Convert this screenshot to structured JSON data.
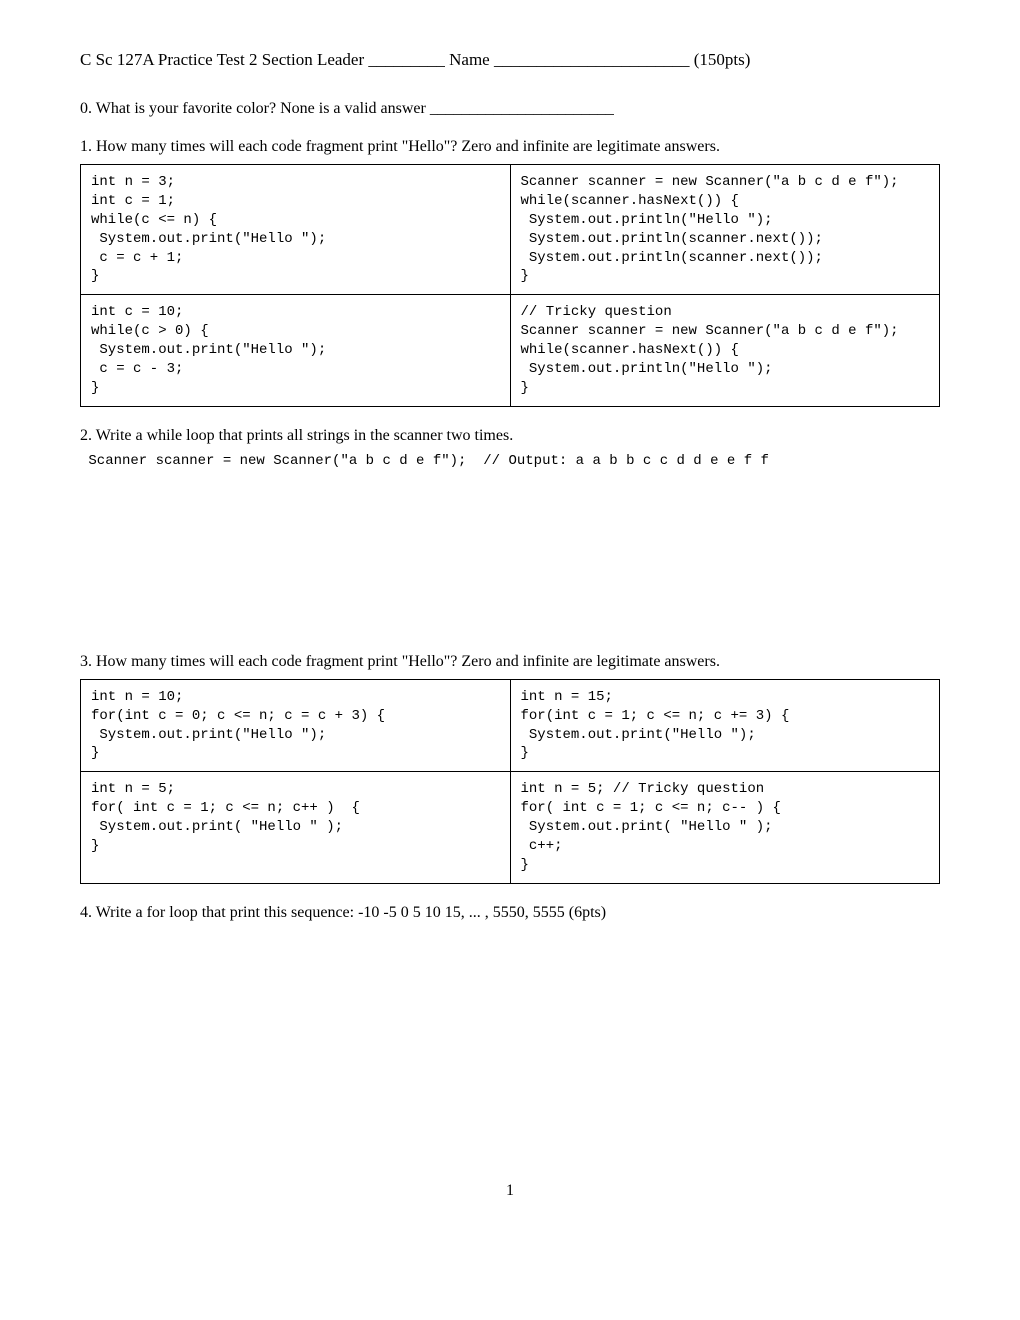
{
  "header": {
    "text": "C Sc 127A Practice Test 2   Section Leader _________   Name _______________________ (150pts)"
  },
  "q0": {
    "text": "0. What is your favorite color? None is a valid answer _______________________"
  },
  "q1": {
    "text": "1. How many times will each code fragment print \"Hello\"?  Zero and infinite are legitimate answers.",
    "cells": {
      "a": "int n = 3;\nint c = 1;\nwhile(c <= n) {\n System.out.print(\"Hello \");\n c = c + 1;\n}",
      "b": "Scanner scanner = new Scanner(\"a b c d e f\");\nwhile(scanner.hasNext()) {\n System.out.println(\"Hello \");\n System.out.println(scanner.next());\n System.out.println(scanner.next());\n}",
      "c": "int c = 10;\nwhile(c > 0) {\n System.out.print(\"Hello \");\n c = c - 3;\n}",
      "d": "// Tricky question\nScanner scanner = new Scanner(\"a b c d e f\");\nwhile(scanner.hasNext()) {\n System.out.println(\"Hello \");\n}"
    }
  },
  "q2": {
    "text": "2. Write a while loop that prints all strings in the scanner two times.",
    "code": " Scanner scanner = new Scanner(\"a b c d e f\");  // Output: a a b b c c d d e e f f"
  },
  "q3": {
    "text": "3. How many times will each code fragment print \"Hello\"?  Zero and infinite are legitimate answers.",
    "cells": {
      "a": "int n = 10;\nfor(int c = 0; c <= n; c = c + 3) {\n System.out.print(\"Hello \");\n}",
      "b": "int n = 15;\nfor(int c = 1; c <= n; c += 3) {\n System.out.print(\"Hello \");\n}",
      "c": "int n = 5;\nfor( int c = 1; c <= n; c++ )  {\n System.out.print( \"Hello \" );\n}",
      "d": "int n = 5; // Tricky question\nfor( int c = 1; c <= n; c-- ) {\n System.out.print( \"Hello \" );\n c++;\n}"
    }
  },
  "q4": {
    "text": "4. Write a for loop that print this sequence:  -10 -5 0 5 10 15, ... , 5550, 5555 (6pts)"
  },
  "pageNumber": "1"
}
